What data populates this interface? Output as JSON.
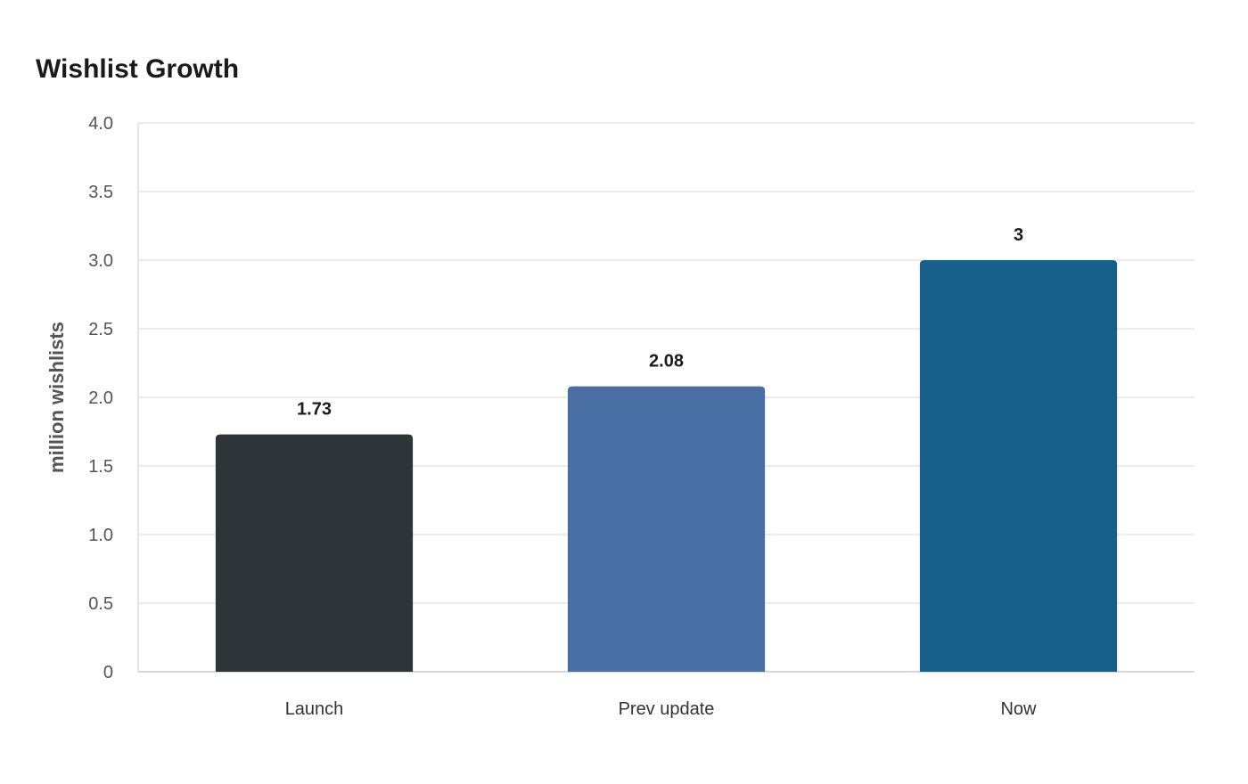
{
  "chart_data": {
    "type": "bar",
    "title": "Wishlist Growth",
    "xlabel": "",
    "ylabel": "million wishlists",
    "categories": [
      "Launch",
      "Prev update",
      "Now"
    ],
    "values": [
      1.73,
      2.08,
      3
    ],
    "value_labels": [
      "1.73",
      "2.08",
      "3"
    ],
    "colors": [
      "#2e3538",
      "#4a6fa5",
      "#176089"
    ],
    "ylim": [
      0,
      4.0
    ],
    "yticks": [
      0,
      0.5,
      1.0,
      1.5,
      2.0,
      2.5,
      3.0,
      3.5,
      4.0
    ],
    "ytick_labels": [
      "0",
      "0.5",
      "1.0",
      "1.5",
      "2.0",
      "2.5",
      "3.0",
      "3.5",
      "4.0"
    ],
    "grid": true,
    "legend": "none"
  }
}
